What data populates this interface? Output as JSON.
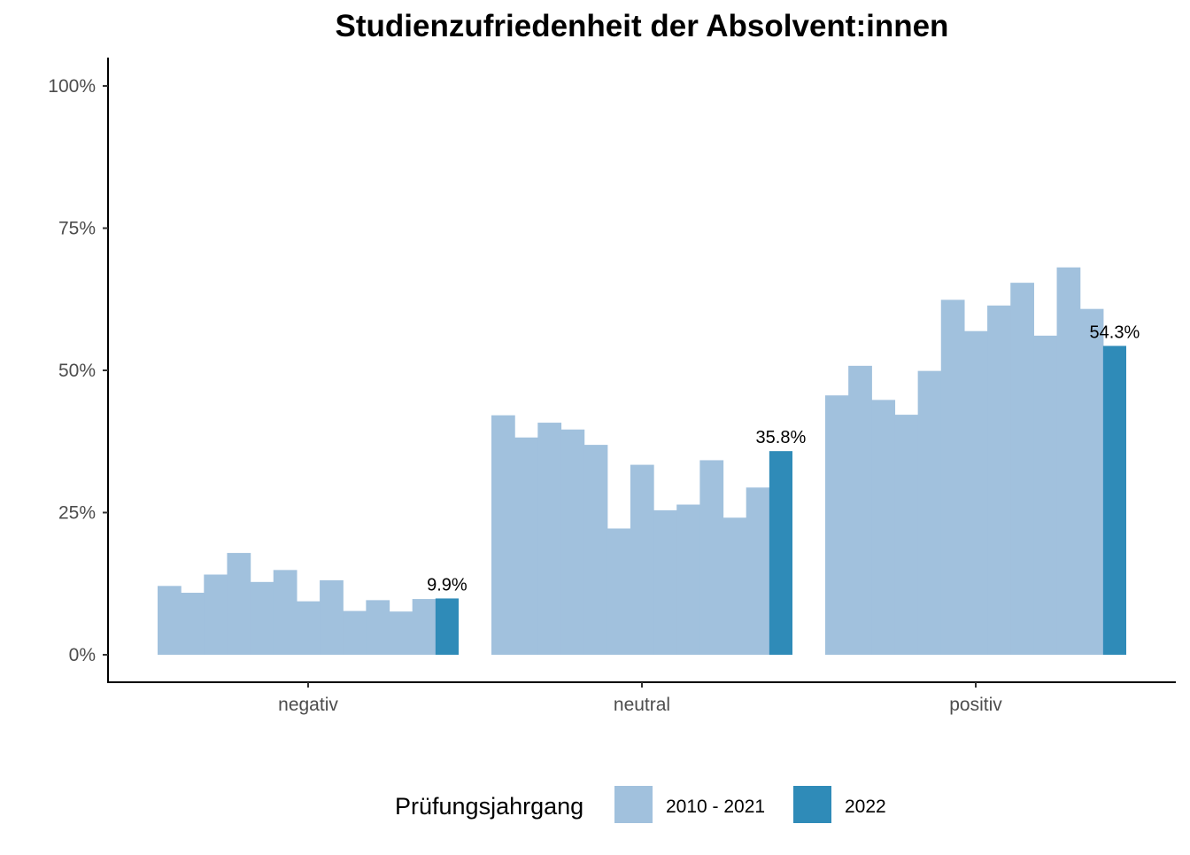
{
  "chart_data": {
    "type": "bar",
    "title": "Studienzufriedenheit der Absolvent:innen",
    "xlabel": "",
    "ylabel": "",
    "ylim": [
      0,
      1
    ],
    "y_ticks": [
      {
        "value": 0,
        "label": "0%"
      },
      {
        "value": 0.25,
        "label": "25%"
      },
      {
        "value": 0.5,
        "label": "50%"
      },
      {
        "value": 0.75,
        "label": "75%"
      },
      {
        "value": 1.0,
        "label": "100%"
      }
    ],
    "categories": [
      "negativ",
      "neutral",
      "positiv"
    ],
    "grid": false,
    "legend": {
      "title": "Prüfungsjahrgang",
      "placement": "bottom",
      "entries": [
        {
          "label": "2010 - 2021",
          "color": "#a1c1dd"
        },
        {
          "label": "2022",
          "color": "#2f8bb8"
        }
      ]
    },
    "series": [
      {
        "name": "2010 - 2021",
        "color": "#a1c1dd",
        "values": [
          [
            0.121,
            0.109,
            0.141,
            0.179,
            0.128,
            0.149,
            0.094,
            0.131,
            0.077,
            0.096,
            0.076,
            0.098
          ],
          [
            0.421,
            0.382,
            0.408,
            0.396,
            0.369,
            0.222,
            0.334,
            0.254,
            0.264,
            0.342,
            0.241,
            0.294
          ],
          [
            0.456,
            0.508,
            0.448,
            0.422,
            0.499,
            0.624,
            0.569,
            0.614,
            0.654,
            0.561,
            0.681,
            0.608
          ]
        ]
      },
      {
        "name": "2022",
        "color": "#2f8bb8",
        "values": [
          0.099,
          0.358,
          0.543
        ],
        "labels": [
          "9.9%",
          "35.8%",
          "54.3%"
        ]
      }
    ]
  }
}
